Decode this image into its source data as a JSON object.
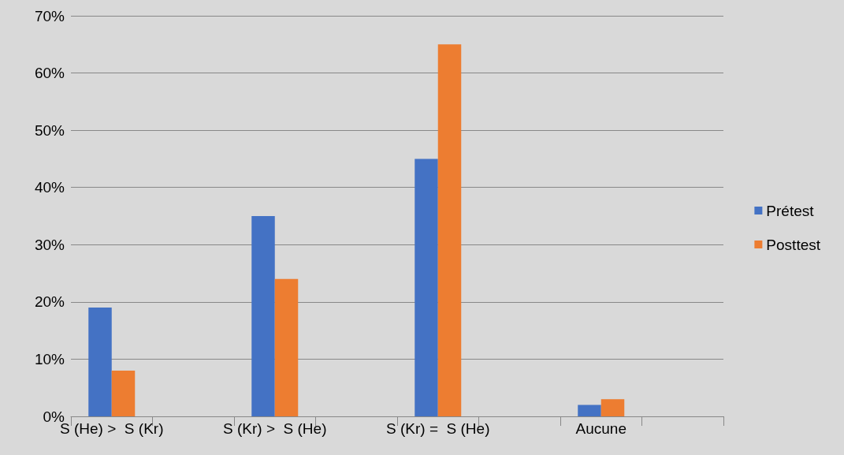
{
  "chart_data": {
    "type": "bar",
    "categories": [
      "S (He) >  S (Kr)",
      null,
      "S (Kr) >  S (He)",
      null,
      "S (Kr) =  S (He)",
      null,
      "Aucune",
      null
    ],
    "series": [
      {
        "name": "Prétest",
        "color": "#4472c4",
        "values": [
          19,
          null,
          35,
          null,
          45,
          null,
          2,
          null
        ]
      },
      {
        "name": "Posttest",
        "color": "#ed7d31",
        "values": [
          8,
          null,
          24,
          null,
          65,
          null,
          3,
          null
        ]
      }
    ],
    "ylim": [
      0,
      70
    ],
    "yticks": [
      {
        "value": 0,
        "label": "0%"
      },
      {
        "value": 10,
        "label": "10%"
      },
      {
        "value": 20,
        "label": "20%"
      },
      {
        "value": 30,
        "label": "30%"
      },
      {
        "value": 40,
        "label": "40%"
      },
      {
        "value": 50,
        "label": "50%"
      },
      {
        "value": 60,
        "label": "60%"
      },
      {
        "value": 70,
        "label": "70%"
      }
    ],
    "grid": "y",
    "legend": "right"
  }
}
